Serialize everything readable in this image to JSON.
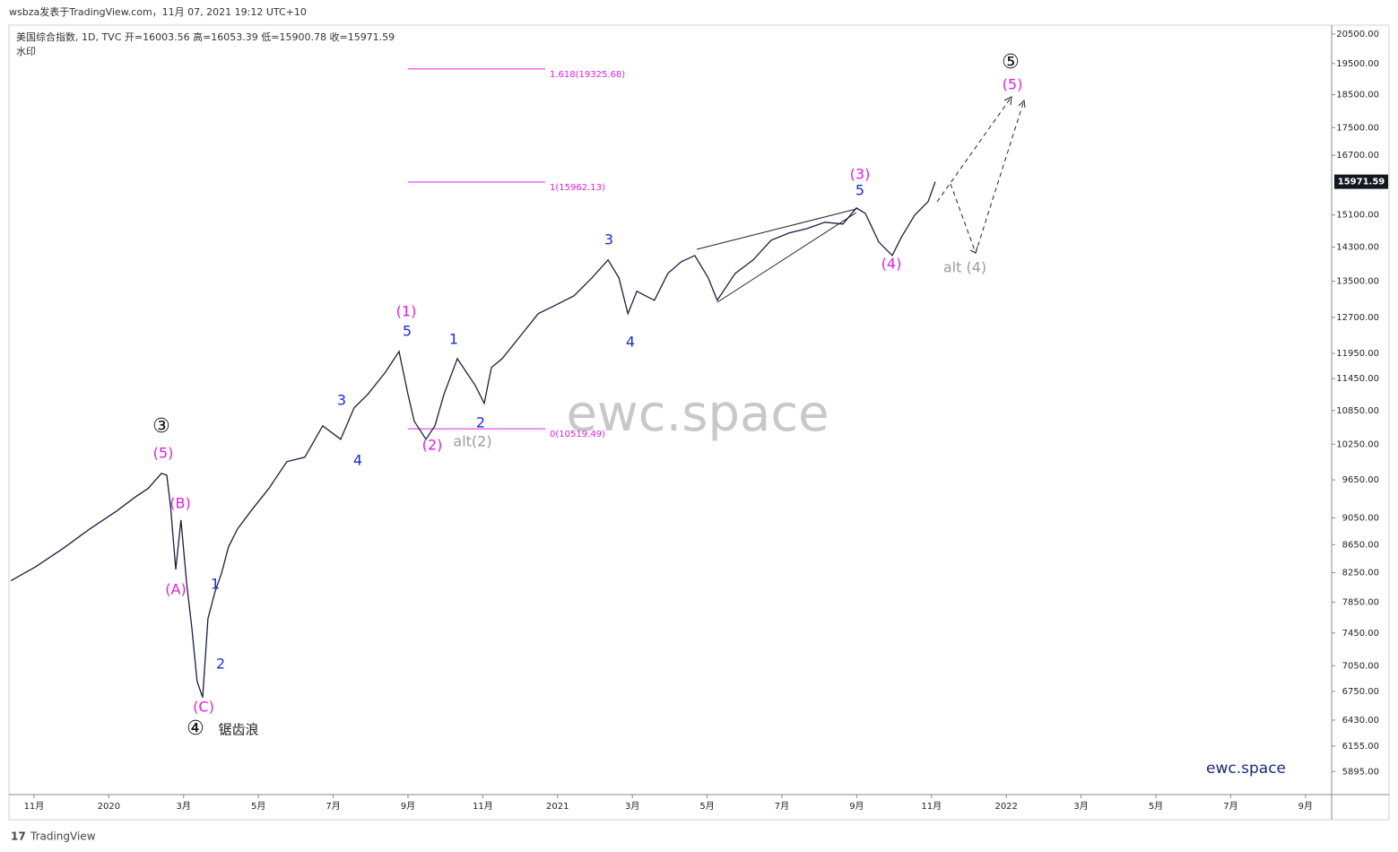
{
  "header": {
    "published": "wsbza发表于TradingView.com，11月 07, 2021 19:12 UTC+10",
    "symbol": "美国综合指数, 1D, TVC  开=16003.56  高=16053.39  低=15900.78  收=15971.59",
    "watermark_note": "水印",
    "watermark": "ewc.space",
    "brand": "ewc.space",
    "footer": "TradingView"
  },
  "chart_data": {
    "type": "line",
    "color": "#1c1c3c",
    "log_scale": true,
    "x": [
      -0.62,
      0.05,
      0.77,
      1.49,
      2.21,
      2.69,
      3.05,
      3.41,
      3.55,
      3.65,
      3.79,
      3.93,
      4.08,
      4.22,
      4.36,
      4.51,
      4.65,
      4.84,
      5.01,
      5.2,
      5.44,
      5.8,
      6.28,
      6.76,
      7.24,
      7.72,
      8.2,
      8.56,
      8.92,
      9.4,
      9.76,
      10.0,
      10.17,
      10.48,
      10.72,
      10.96,
      11.32,
      11.56,
      11.8,
      12.04,
      12.23,
      12.52,
      13.0,
      13.48,
      13.96,
      14.44,
      14.92,
      15.35,
      15.64,
      15.88,
      16.12,
      16.59,
      16.95,
      17.31,
      17.67,
      18.03,
      18.27,
      18.75,
      19.23,
      19.71,
      20.19,
      20.67,
      21.15,
      21.63,
      21.99,
      22.23,
      22.59,
      22.95,
      23.19,
      23.55,
      23.91,
      24.1
    ],
    "values": [
      8137,
      8335,
      8592,
      8882,
      9156,
      9367,
      9510,
      9758,
      9727,
      9225,
      8296,
      9018,
      8110,
      7519,
      6866,
      6681,
      7634,
      7989,
      8235,
      8616,
      8882,
      9156,
      9510,
      9951,
      10027,
      10574,
      10336,
      10898,
      11148,
      11578,
      11988,
      11148,
      10654,
      10336,
      10574,
      11148,
      11845,
      11578,
      11320,
      10982,
      11667,
      11845,
      12302,
      12778,
      12972,
      13171,
      13577,
      13995,
      13577,
      12778,
      13272,
      13071,
      13680,
      13952,
      14100,
      13577,
      13071,
      13680,
      13995,
      14467,
      14645,
      14756,
      14914,
      14869,
      15279,
      15141,
      14424,
      14100,
      14535,
      15094,
      15443,
      15971
    ],
    "last_price": 15971.59,
    "xlim": [
      -0.67,
      34.7
    ],
    "xticks": [
      {
        "value": 0,
        "label": "11月"
      },
      {
        "value": 2,
        "label": "2020"
      },
      {
        "value": 4,
        "label": "3月"
      },
      {
        "value": 6,
        "label": "5月"
      },
      {
        "value": 8,
        "label": "7月"
      },
      {
        "value": 10,
        "label": "9月"
      },
      {
        "value": 12,
        "label": "11月"
      },
      {
        "value": 14,
        "label": "2021"
      },
      {
        "value": 16,
        "label": "3月"
      },
      {
        "value": 18,
        "label": "5月"
      },
      {
        "value": 20,
        "label": "7月"
      },
      {
        "value": 22,
        "label": "9月"
      },
      {
        "value": 24,
        "label": "11月"
      },
      {
        "value": 26,
        "label": "2022"
      },
      {
        "value": 28,
        "label": "3月"
      },
      {
        "value": 30,
        "label": "5月"
      },
      {
        "value": 32,
        "label": "7月"
      },
      {
        "value": 34,
        "label": "9月"
      }
    ],
    "ylim": [
      5670,
      20810
    ],
    "yticks": [
      {
        "value": 20500,
        "label": "20500.00"
      },
      {
        "value": 19500,
        "label": "19500.00"
      },
      {
        "value": 18500,
        "label": "18500.00"
      },
      {
        "value": 17500,
        "label": "17500.00"
      },
      {
        "value": 16700,
        "label": "16700.00"
      },
      {
        "value": 15100,
        "label": "15100.00"
      },
      {
        "value": 14300,
        "label": "14300.00"
      },
      {
        "value": 13500,
        "label": "13500.00"
      },
      {
        "value": 12700,
        "label": "12700.00"
      },
      {
        "value": 11950,
        "label": "11950.00"
      },
      {
        "value": 11450,
        "label": "11450.00"
      },
      {
        "value": 10850,
        "label": "10850.00"
      },
      {
        "value": 10250,
        "label": "10250.00"
      },
      {
        "value": 9650,
        "label": "9650.00"
      },
      {
        "value": 9050,
        "label": "9050.00"
      },
      {
        "value": 8650,
        "label": "8650.00"
      },
      {
        "value": 8250,
        "label": "8250.00"
      },
      {
        "value": 7850,
        "label": "7850.00"
      },
      {
        "value": 7450,
        "label": "7450.00"
      },
      {
        "value": 7050,
        "label": "7050.00"
      },
      {
        "value": 6750,
        "label": "6750.00"
      },
      {
        "value": 6430,
        "label": "6430.00"
      },
      {
        "value": 6155,
        "label": "6155.00"
      },
      {
        "value": 5895,
        "label": "5895.00"
      }
    ],
    "fib_levels": [
      {
        "value": 19325.68,
        "label": "1.618(19325.68)"
      },
      {
        "value": 15962.13,
        "label": "1(15962.13)"
      },
      {
        "value": 10519.49,
        "label": "0(10519.49)"
      }
    ],
    "fib_color": "#e020e0",
    "annotations": [
      {
        "text": "⑤",
        "color": "#111111"
      },
      {
        "text": "(5)",
        "color": "#e020e0"
      },
      {
        "text": "(3)",
        "color": "#e020e0"
      },
      {
        "text": "5",
        "color": "#1a2fd6"
      },
      {
        "text": "(4)",
        "color": "#e020e0"
      },
      {
        "text": "alt (4)",
        "color": "#9a9a9a"
      },
      {
        "text": "3",
        "color": "#1a2fd6"
      },
      {
        "text": "4",
        "color": "#1a2fd6"
      },
      {
        "text": "(1)",
        "color": "#e020e0"
      },
      {
        "text": "5",
        "color": "#1a2fd6"
      },
      {
        "text": "1",
        "color": "#1a2fd6"
      },
      {
        "text": "2",
        "color": "#1a2fd6"
      },
      {
        "text": "(2)",
        "color": "#e020e0"
      },
      {
        "text": "alt(2)",
        "color": "#9a9a9a"
      },
      {
        "text": "3",
        "color": "#1a2fd6"
      },
      {
        "text": "4",
        "color": "#1a2fd6"
      },
      {
        "text": "③",
        "color": "#111111"
      },
      {
        "text": "(5)",
        "color": "#e020e0"
      },
      {
        "text": "(B)",
        "color": "#e020e0"
      },
      {
        "text": "(A)",
        "color": "#e020e0"
      },
      {
        "text": "1",
        "color": "#1a2fd6"
      },
      {
        "text": "2",
        "color": "#1a2fd6"
      },
      {
        "text": "(C)",
        "color": "#e020e0"
      },
      {
        "text": "④",
        "color": "#111111"
      },
      {
        "text": "锯齿浪",
        "color": "#222222"
      }
    ]
  }
}
